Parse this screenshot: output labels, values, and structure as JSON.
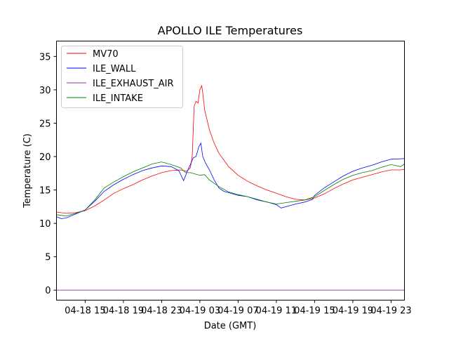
{
  "chart_data": {
    "type": "line",
    "title": "APOLLO ILE Temperatures",
    "xlabel": "Date (GMT)",
    "ylabel": "Temperature (C)",
    "x_unit": "hours since 04-18 00:00",
    "xlim": [
      12.0,
      48.4
    ],
    "ylim": [
      -1.5,
      37.3
    ],
    "grid": false,
    "legend_position": "top-left",
    "x_ticks": [
      {
        "value": 15,
        "label": "04-18 15"
      },
      {
        "value": 19,
        "label": "04-18 19"
      },
      {
        "value": 23,
        "label": "04-18 23"
      },
      {
        "value": 27,
        "label": "04-19 03"
      },
      {
        "value": 31,
        "label": "04-19 07"
      },
      {
        "value": 35,
        "label": "04-19 11"
      },
      {
        "value": 39,
        "label": "04-19 15"
      },
      {
        "value": 43,
        "label": "04-19 19"
      },
      {
        "value": 47,
        "label": "04-19 23"
      }
    ],
    "y_ticks": [
      0,
      5,
      10,
      15,
      20,
      25,
      30,
      35
    ],
    "series": [
      {
        "name": "MV70",
        "color": "#ff0000",
        "points": [
          [
            12.0,
            11.7
          ],
          [
            13.0,
            11.5
          ],
          [
            14.0,
            11.6
          ],
          [
            15.0,
            11.9
          ],
          [
            16.0,
            12.6
          ],
          [
            17.0,
            13.5
          ],
          [
            18.0,
            14.5
          ],
          [
            19.0,
            15.2
          ],
          [
            20.0,
            15.8
          ],
          [
            21.0,
            16.5
          ],
          [
            22.0,
            17.1
          ],
          [
            23.0,
            17.6
          ],
          [
            24.0,
            17.9
          ],
          [
            25.0,
            18.0
          ],
          [
            25.6,
            17.8
          ],
          [
            26.0,
            18.3
          ],
          [
            26.2,
            20.0
          ],
          [
            26.4,
            27.5
          ],
          [
            26.6,
            28.3
          ],
          [
            26.8,
            28.0
          ],
          [
            27.0,
            30.0
          ],
          [
            27.2,
            30.6
          ],
          [
            27.3,
            29.5
          ],
          [
            27.5,
            27.0
          ],
          [
            28.0,
            24.0
          ],
          [
            28.5,
            22.0
          ],
          [
            29.0,
            20.5
          ],
          [
            30.0,
            18.5
          ],
          [
            31.0,
            17.2
          ],
          [
            32.0,
            16.3
          ],
          [
            33.0,
            15.6
          ],
          [
            34.0,
            15.0
          ],
          [
            35.0,
            14.5
          ],
          [
            36.0,
            14.0
          ],
          [
            37.0,
            13.6
          ],
          [
            38.0,
            13.5
          ],
          [
            39.0,
            13.8
          ],
          [
            40.0,
            14.4
          ],
          [
            41.0,
            15.2
          ],
          [
            42.0,
            15.9
          ],
          [
            43.0,
            16.5
          ],
          [
            44.0,
            16.9
          ],
          [
            45.0,
            17.3
          ],
          [
            46.0,
            17.7
          ],
          [
            47.0,
            18.0
          ],
          [
            48.0,
            18.0
          ],
          [
            48.4,
            18.1
          ]
        ]
      },
      {
        "name": "ILE_WALL",
        "color": "#0000ff",
        "points": [
          [
            12.0,
            11.0
          ],
          [
            12.5,
            10.7
          ],
          [
            13.0,
            10.8
          ],
          [
            14.0,
            11.4
          ],
          [
            15.0,
            12.0
          ],
          [
            16.0,
            13.3
          ],
          [
            17.0,
            14.8
          ],
          [
            18.0,
            15.8
          ],
          [
            19.0,
            16.6
          ],
          [
            20.0,
            17.3
          ],
          [
            21.0,
            17.9
          ],
          [
            22.0,
            18.3
          ],
          [
            23.0,
            18.6
          ],
          [
            24.0,
            18.5
          ],
          [
            24.8,
            17.9
          ],
          [
            25.3,
            16.4
          ],
          [
            25.6,
            17.5
          ],
          [
            26.0,
            18.8
          ],
          [
            26.3,
            19.8
          ],
          [
            26.6,
            20.0
          ],
          [
            26.9,
            21.5
          ],
          [
            27.1,
            22.0
          ],
          [
            27.3,
            20.0
          ],
          [
            27.6,
            19.0
          ],
          [
            28.0,
            18.0
          ],
          [
            28.5,
            16.5
          ],
          [
            29.0,
            15.3
          ],
          [
            29.5,
            14.8
          ],
          [
            30.0,
            14.6
          ],
          [
            31.0,
            14.2
          ],
          [
            32.0,
            14.0
          ],
          [
            33.0,
            13.5
          ],
          [
            34.0,
            13.2
          ],
          [
            35.0,
            12.8
          ],
          [
            35.5,
            12.3
          ],
          [
            36.0,
            12.5
          ],
          [
            37.0,
            12.9
          ],
          [
            38.0,
            13.2
          ],
          [
            38.8,
            13.6
          ],
          [
            39.0,
            14.2
          ],
          [
            40.0,
            15.3
          ],
          [
            41.0,
            16.2
          ],
          [
            42.0,
            17.1
          ],
          [
            43.0,
            17.8
          ],
          [
            44.0,
            18.3
          ],
          [
            45.0,
            18.7
          ],
          [
            46.0,
            19.2
          ],
          [
            47.0,
            19.6
          ],
          [
            48.4,
            19.7
          ]
        ]
      },
      {
        "name": "ILE_EXHAUST_AIR",
        "color": "#9030a0",
        "points": [
          [
            12.0,
            0.0
          ],
          [
            48.4,
            0.0
          ]
        ]
      },
      {
        "name": "ILE_INTAKE",
        "color": "#008000",
        "points": [
          [
            12.0,
            11.3
          ],
          [
            13.0,
            11.1
          ],
          [
            14.0,
            11.5
          ],
          [
            15.0,
            12.0
          ],
          [
            16.0,
            13.5
          ],
          [
            17.0,
            15.3
          ],
          [
            18.0,
            16.2
          ],
          [
            19.0,
            17.0
          ],
          [
            20.0,
            17.7
          ],
          [
            21.0,
            18.3
          ],
          [
            22.0,
            18.9
          ],
          [
            23.0,
            19.2
          ],
          [
            24.0,
            18.8
          ],
          [
            25.0,
            18.3
          ],
          [
            25.5,
            17.6
          ],
          [
            26.0,
            17.6
          ],
          [
            27.0,
            17.2
          ],
          [
            27.5,
            17.3
          ],
          [
            28.0,
            16.5
          ],
          [
            29.0,
            15.5
          ],
          [
            30.0,
            14.7
          ],
          [
            31.0,
            14.3
          ],
          [
            32.0,
            14.0
          ],
          [
            33.0,
            13.6
          ],
          [
            34.0,
            13.2
          ],
          [
            35.0,
            12.9
          ],
          [
            36.0,
            13.1
          ],
          [
            37.0,
            13.3
          ],
          [
            38.0,
            13.5
          ],
          [
            39.0,
            14.0
          ],
          [
            40.0,
            14.9
          ],
          [
            41.0,
            15.8
          ],
          [
            42.0,
            16.6
          ],
          [
            43.0,
            17.2
          ],
          [
            44.0,
            17.6
          ],
          [
            45.0,
            17.9
          ],
          [
            46.0,
            18.4
          ],
          [
            47.0,
            18.8
          ],
          [
            48.0,
            18.5
          ],
          [
            48.4,
            18.9
          ]
        ]
      }
    ]
  }
}
